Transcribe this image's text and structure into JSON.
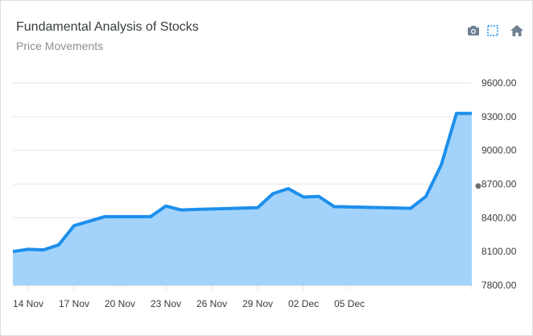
{
  "header": {
    "title": "Fundamental Analysis of Stocks",
    "subtitle": "Price Movements"
  },
  "toolbar": {
    "icons": [
      "camera-icon",
      "zoom-select-icon",
      "home-icon"
    ]
  },
  "colors": {
    "line": "#1d8fec",
    "area": "#a3d3fb",
    "grid": "#e6e6e6",
    "text": "#373d3f",
    "icon": "#6e8192"
  },
  "chart_data": {
    "type": "area",
    "title": "Fundamental Analysis of Stocks",
    "subtitle": "Price Movements",
    "x_start": "13 Nov",
    "x_tick_labels": [
      "14 Nov",
      "17 Nov",
      "20 Nov",
      "23 Nov",
      "26 Nov",
      "29 Nov",
      "02 Dec",
      "05 Dec"
    ],
    "y_tick_labels": [
      "7800.00",
      "8100.00",
      "8400.00",
      "8700.00",
      "9000.00",
      "9300.00",
      "9600.00"
    ],
    "ylim": [
      7800,
      9600
    ],
    "y_axis_position": "right",
    "grid": true,
    "series": [
      {
        "day_offsets": [
          0,
          1,
          2,
          3,
          4,
          6,
          9,
          10,
          11,
          12,
          16,
          17,
          18,
          19,
          20,
          21,
          26,
          27,
          28,
          29,
          30
        ],
        "values": [
          8100,
          8120,
          8115,
          8160,
          8330,
          8410,
          8410,
          8505,
          8470,
          8475,
          8490,
          8615,
          8660,
          8585,
          8590,
          8500,
          8485,
          8590,
          8870,
          9330,
          9330
        ],
        "x_labels_for_offsets": [
          "13 Nov",
          "14 Nov",
          "15 Nov",
          "16 Nov",
          "17 Nov",
          "19 Nov",
          "22 Nov",
          "23 Nov",
          "24 Nov",
          "25 Nov",
          "29 Nov",
          "30 Nov",
          "01 Dec",
          "02 Dec",
          "03 Dec",
          "04 Dec",
          "09 Dec",
          "10 Dec",
          "11 Dec",
          "12 Dec",
          "13 Dec"
        ]
      }
    ]
  }
}
